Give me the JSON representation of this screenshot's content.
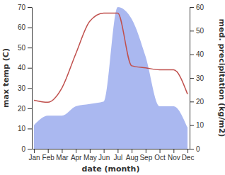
{
  "chart_data": {
    "type": "line",
    "x_label": "date (month)",
    "y_label": "max temp (C)",
    "y2_label": "med. precipitation (kg/m2)",
    "categories": [
      "Jan",
      "Feb",
      "Mar",
      "Apr",
      "May",
      "Jun",
      "Jul",
      "Aug",
      "Sep",
      "Oct",
      "Nov",
      "Dec"
    ],
    "series": [
      {
        "type": "area",
        "axis": "y2",
        "color": "#aab8f0",
        "values": [
          10,
          14,
          14,
          18,
          19,
          20,
          60,
          55,
          39,
          18,
          18,
          9
        ]
      },
      {
        "type": "line",
        "color": "#c0504d",
        "values": [
          24,
          23,
          30,
          47,
          63,
          67,
          67,
          41,
          40,
          39,
          39,
          27
        ]
      }
    ],
    "ylim": [
      0,
      70
    ],
    "yticks": [
      0,
      10,
      20,
      30,
      40,
      50,
      60,
      70
    ],
    "y2lim": [
      0,
      60
    ],
    "y2ticks": [
      0,
      10,
      20,
      30,
      40,
      50,
      60
    ],
    "grid": false
  }
}
